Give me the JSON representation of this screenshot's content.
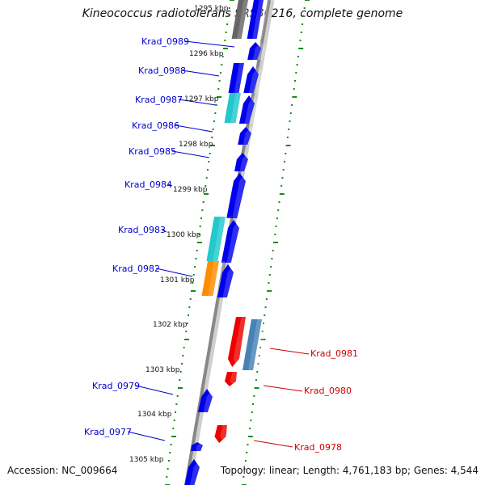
{
  "title": "Kineococcus radiotolerans SRS30216, complete genome",
  "accession": "Accession: NC_009664",
  "summary": "Topology: linear; Length: 4,761,183 bp; Genes: 4,544",
  "colors": {
    "forward_label": "#0000cc",
    "reverse_label": "#cc0000",
    "forward_gene": "#0000ee",
    "reverse_gene": "#ee0000",
    "cyan_gene": "#22c8cc",
    "orange_gene": "#ff8c00",
    "gray_gene": "#666666",
    "steel_gene": "#4682b4",
    "track_dots": "#1a8a1a",
    "axis": "#888888"
  },
  "ticks": [
    "1295 kbp",
    "1296 kbp",
    "1297 kbp",
    "1298 kbp",
    "1299 kbp",
    "1300 kbp",
    "1301 kbp",
    "1302 kbp",
    "1303 kbp",
    "1304 kbp",
    "1305 kbp"
  ],
  "forward_labels": [
    "Krad_0989",
    "Krad_0988",
    "Krad_0987",
    "Krad_0986",
    "Krad_0985",
    "Krad_0984",
    "Krad_0983",
    "Krad_0982",
    "Krad_0979",
    "Krad_0977"
  ],
  "reverse_labels": [
    "Krad_0981",
    "Krad_0980",
    "Krad_0978"
  ]
}
